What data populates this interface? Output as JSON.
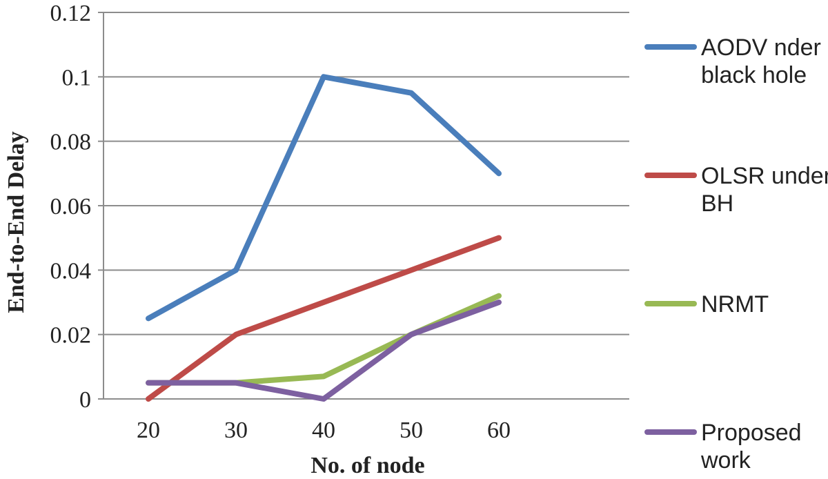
{
  "chart_data": {
    "type": "line",
    "title": "",
    "xlabel": "No. of node",
    "ylabel": "End-to-End Delay",
    "x": [
      20,
      30,
      40,
      50,
      60
    ],
    "x_tick_labels": [
      "20",
      "30",
      "40",
      "50",
      "60"
    ],
    "ylim": [
      0,
      0.12
    ],
    "y_ticks": [
      0,
      0.02,
      0.04,
      0.06,
      0.08,
      0.1,
      0.12
    ],
    "y_tick_labels": [
      "0",
      "0.02",
      "0.04",
      "0.06",
      "0.08",
      "0.1",
      "0.12"
    ],
    "grid": "horizontal",
    "legend_position": "right",
    "series": [
      {
        "name": "AODV nder black hole",
        "name_lines": [
          "AODV nder",
          "black hole"
        ],
        "color": "#4a7ebb",
        "values": [
          0.025,
          0.04,
          0.1,
          0.095,
          0.07
        ]
      },
      {
        "name": "OLSR under BH",
        "name_lines": [
          "OLSR under",
          "BH"
        ],
        "color": "#be4b48",
        "values": [
          0,
          0.02,
          0.03,
          0.04,
          0.05
        ]
      },
      {
        "name": "NRMT",
        "name_lines": [
          "NRMT"
        ],
        "color": "#98b954",
        "values": [
          0.005,
          0.005,
          0.007,
          0.02,
          0.032
        ]
      },
      {
        "name": "Proposed work",
        "name_lines": [
          "Proposed",
          "work"
        ],
        "color": "#7d60a0",
        "values": [
          0.005,
          0.005,
          0,
          0.02,
          0.03
        ]
      }
    ]
  }
}
